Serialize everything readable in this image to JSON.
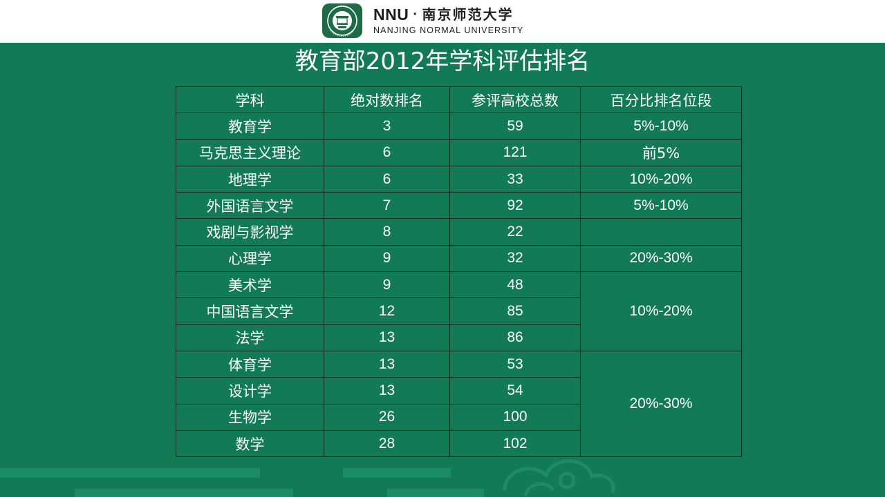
{
  "header": {
    "brand": "NNU",
    "separator": "·",
    "university_cn": "南京师范大学",
    "university_en": "NANJING NORMAL UNIVERSITY"
  },
  "title": "教育部2012年学科评估排名",
  "table": {
    "headers": [
      "学科",
      "绝对数排名",
      "参评高校总数",
      "百分比排名位段"
    ],
    "rows": [
      {
        "subject": "教育学",
        "rank": "3",
        "total": "59",
        "percent": "5%-10%"
      },
      {
        "subject": "马克思主义理论",
        "rank": "6",
        "total": "121",
        "percent": "前5%"
      },
      {
        "subject": "地理学",
        "rank": "6",
        "total": "33",
        "percent": "10%-20%"
      },
      {
        "subject": "外国语言文学",
        "rank": "7",
        "total": "92",
        "percent": "5%-10%"
      },
      {
        "subject": "戏剧与影视学",
        "rank": "8",
        "total": "22",
        "percent": ""
      },
      {
        "subject": "心理学",
        "rank": "9",
        "total": "32",
        "percent": "20%-30%"
      },
      {
        "subject": "美术学",
        "rank": "9",
        "total": "48",
        "percent": "10%-20%"
      },
      {
        "subject": "中国语言文学",
        "rank": "12",
        "total": "85"
      },
      {
        "subject": "法学",
        "rank": "13",
        "total": "86"
      },
      {
        "subject": "体育学",
        "rank": "13",
        "total": "53",
        "percent": "20%-30%"
      },
      {
        "subject": "设计学",
        "rank": "13",
        "total": "54"
      },
      {
        "subject": "生物学",
        "rank": "26",
        "total": "100"
      },
      {
        "subject": "数学",
        "rank": "28",
        "total": "102"
      }
    ]
  },
  "colors": {
    "background": "#127A55",
    "header_bg": "#FFFFFF",
    "emblem_green": "#1E6B47",
    "text": "#FFFFFF",
    "grid_line": "#0D2A20"
  }
}
